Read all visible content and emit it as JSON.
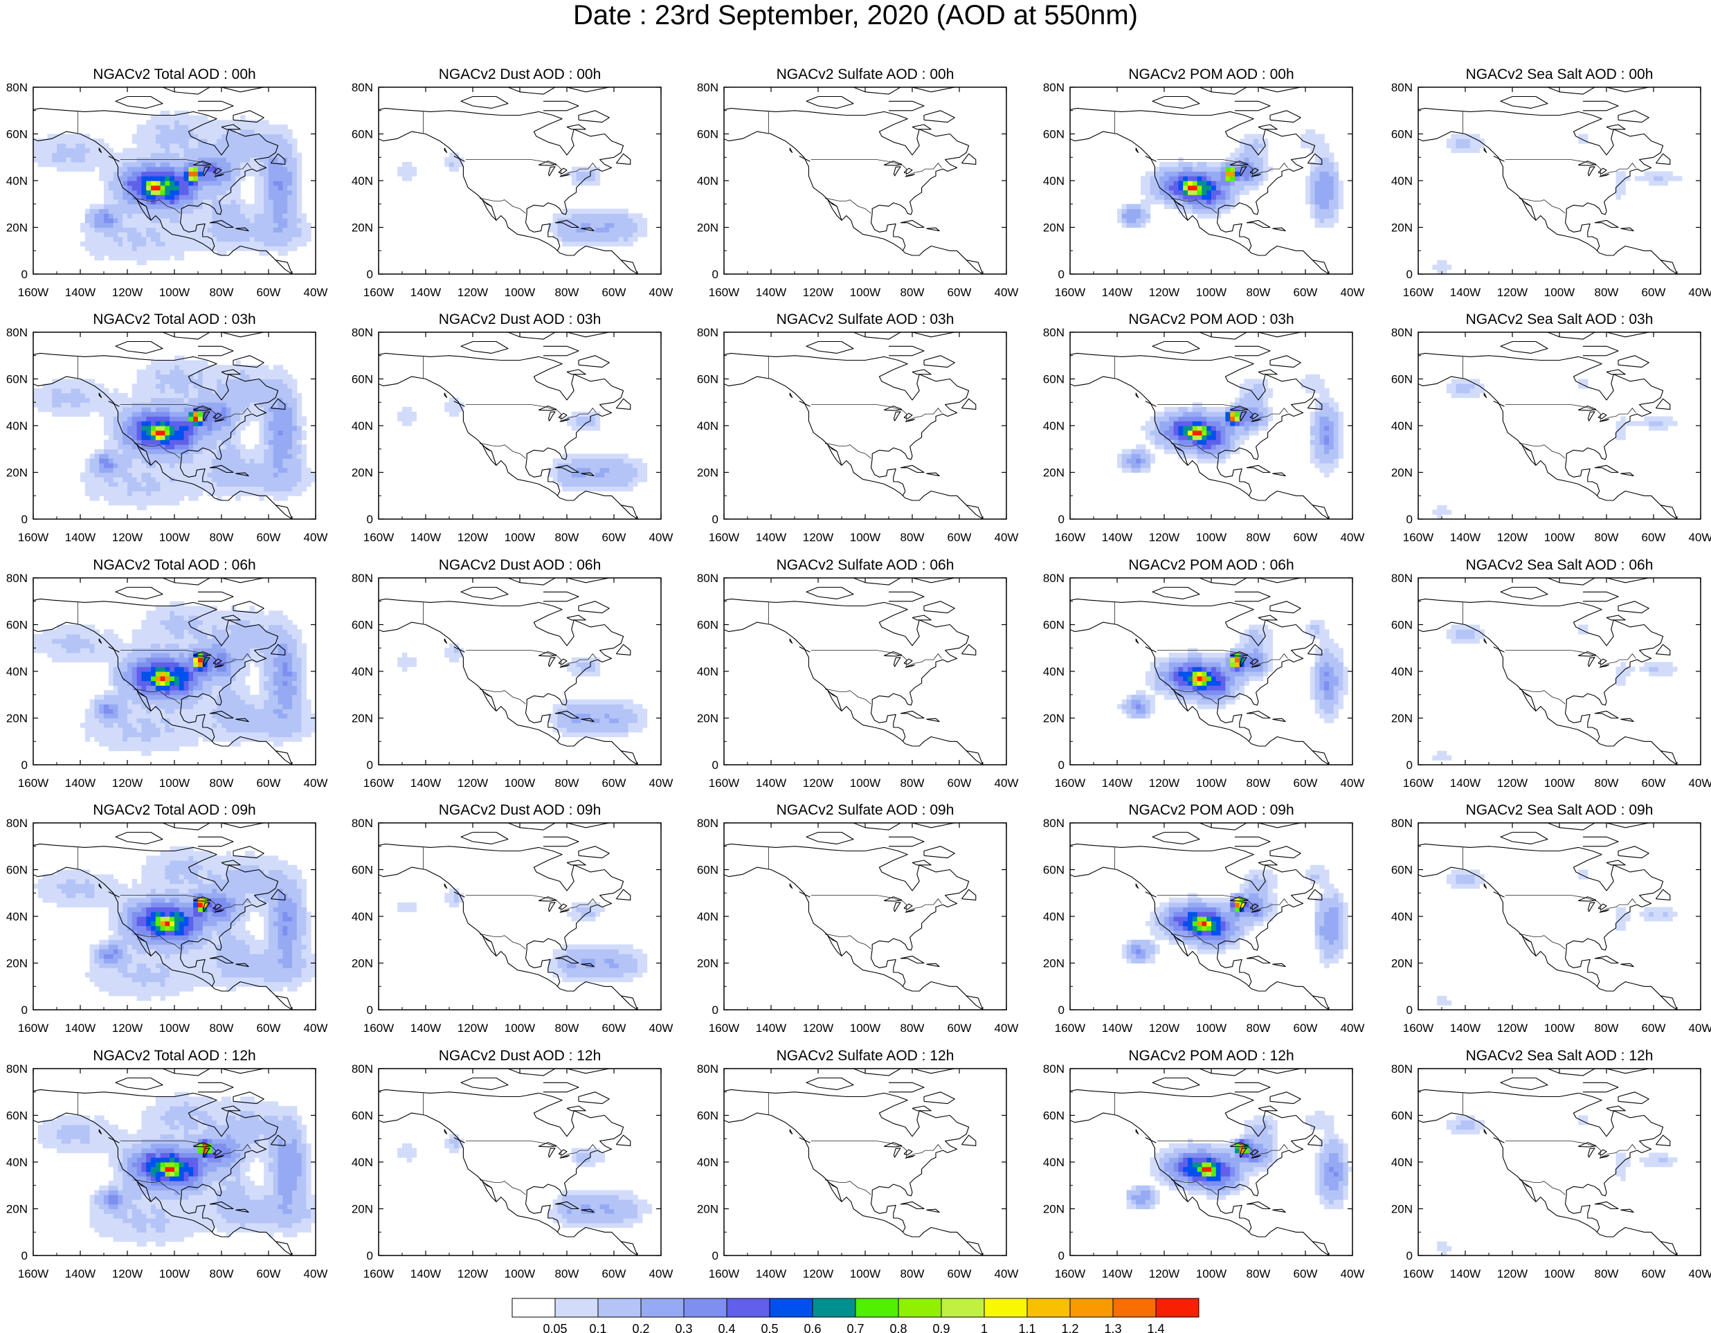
{
  "title": "Date : 23rd  September, 2020 (AOD at 550nm)",
  "axes": {
    "x_ticks": [
      "160W",
      "140W",
      "120W",
      "100W",
      "80W",
      "60W",
      "40W"
    ],
    "y_ticks": [
      "0",
      "20N",
      "40N",
      "60N",
      "80N"
    ],
    "x_range_deg": [
      -160,
      -40
    ],
    "y_range_deg": [
      0,
      80
    ]
  },
  "panels": [
    [
      "NGACv2 Total AOD : 00h",
      "NGACv2 Dust AOD : 00h",
      "NGACv2 Sulfate AOD : 00h",
      "NGACv2 POM AOD : 00h",
      "NGACv2 Sea Salt AOD : 00h"
    ],
    [
      "NGACv2 Total AOD : 03h",
      "NGACv2 Dust AOD : 03h",
      "NGACv2 Sulfate AOD : 03h",
      "NGACv2 POM AOD : 03h",
      "NGACv2 Sea Salt AOD : 03h"
    ],
    [
      "NGACv2 Total AOD : 06h",
      "NGACv2 Dust AOD : 06h",
      "NGACv2 Sulfate AOD : 06h",
      "NGACv2 POM AOD : 06h",
      "NGACv2 Sea Salt AOD : 06h"
    ],
    [
      "NGACv2 Total AOD : 09h",
      "NGACv2 Dust AOD : 09h",
      "NGACv2 Sulfate AOD : 09h",
      "NGACv2 POM AOD : 09h",
      "NGACv2 Sea Salt  AOD : 09h"
    ],
    [
      "NGACv2 Total AOD  : 12h",
      "NGACv2 Dust AOD : 12h",
      "NGACv2 Sulfate AOD : 12h",
      "NGACv2 POM  AOD : 12h",
      "NGACv2 Sea Salt  AOD : 12h"
    ]
  ],
  "colorbar": {
    "colors": [
      "#ffffff",
      "#d2dcfa",
      "#b4c4f7",
      "#96aaf4",
      "#7e8ff0",
      "#6060ea",
      "#0050f0",
      "#009090",
      "#50f000",
      "#90f000",
      "#c0f040",
      "#f8f800",
      "#f8c000",
      "#f89a00",
      "#f86e00",
      "#f82000"
    ],
    "labels": [
      "0.05",
      "0.1",
      "0.2",
      "0.3",
      "0.4",
      "0.5",
      "0.6",
      "0.7",
      "0.8",
      "0.9",
      "1",
      "1.1",
      "1.2",
      "1.3",
      "1.4"
    ]
  }
}
